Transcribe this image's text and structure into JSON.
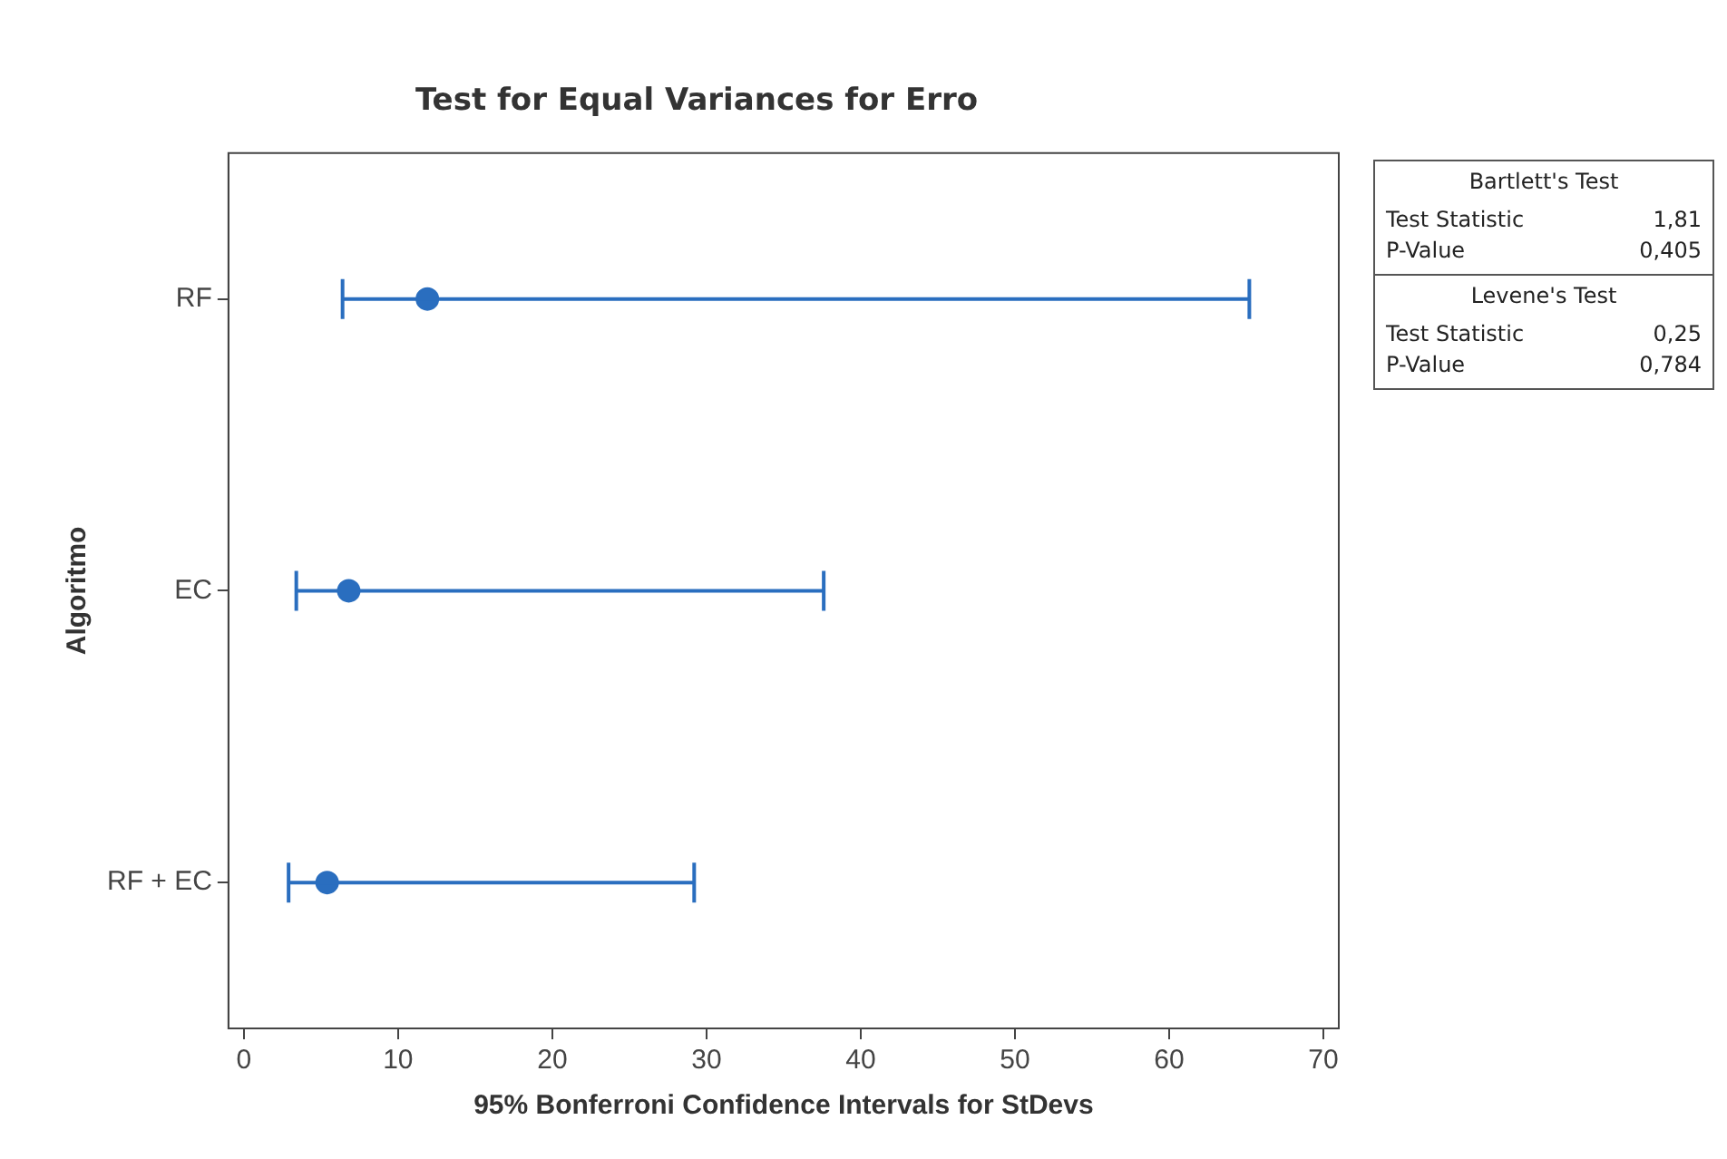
{
  "chart_data": {
    "type": "scatter",
    "orientation": "horizontal",
    "title": "Test for Equal Variances for Erro",
    "xlabel": "95% Bonferroni Confidence Intervals for StDevs",
    "ylabel": "Algoritmo",
    "categories": [
      "RF",
      "EC",
      "RF + EC"
    ],
    "values": [
      11.9,
      6.8,
      5.4
    ],
    "errors": [
      [
        6.4,
        65.2
      ],
      [
        3.4,
        37.6
      ],
      [
        2.9,
        29.2
      ]
    ],
    "color": "#2a6ebf",
    "marker": "circle",
    "grid": false,
    "legend": false,
    "xlim": [
      -1,
      71
    ],
    "xticks": [
      0,
      10,
      20,
      30,
      40,
      50,
      60,
      70
    ],
    "annotations": [
      "Bartlett's Test",
      "Test Statistic",
      "1,81",
      "P-Value",
      "0,405",
      "Levene's Test",
      "Test Statistic",
      "0,25",
      "P-Value",
      "0,784"
    ]
  }
}
